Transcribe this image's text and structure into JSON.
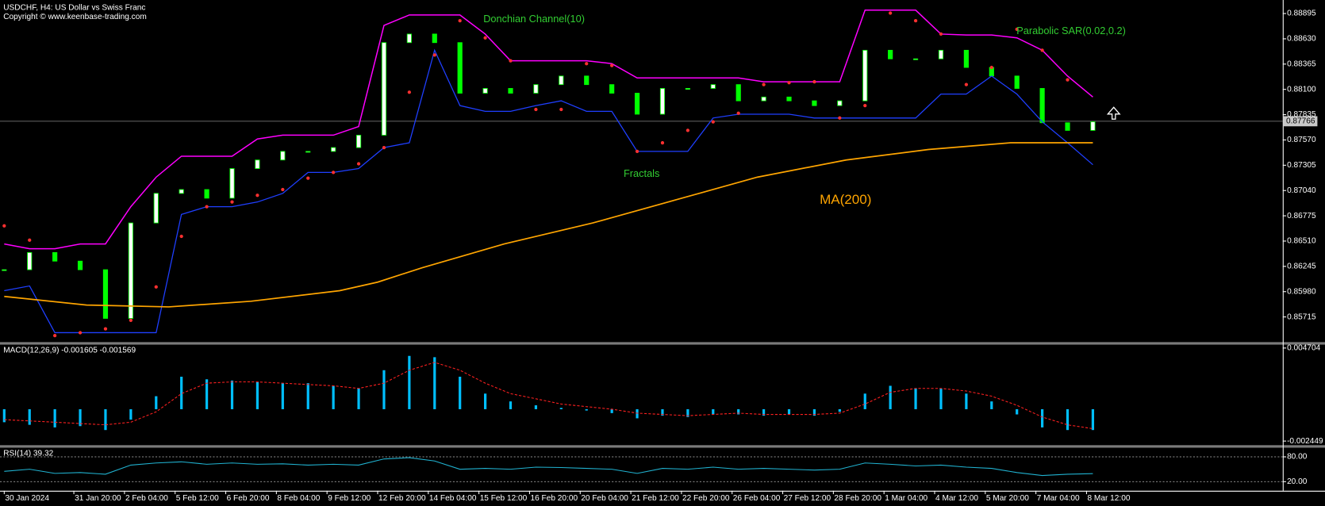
{
  "chart_data": [
    {
      "type": "price",
      "title": "USDCHF, H4:  US Dollar vs Swiss Franc",
      "subtitle": "Copyright © www.keenbase-trading.com",
      "annotation": "Fractals",
      "x": [
        0,
        4,
        8,
        12,
        16,
        20,
        24,
        28,
        32,
        36,
        40,
        44,
        48,
        52,
        56,
        60,
        64,
        68,
        72,
        76,
        80,
        84,
        88,
        92,
        96,
        100,
        104,
        108,
        112,
        116,
        120,
        124,
        128,
        132,
        136,
        140,
        144,
        148,
        152,
        156,
        160,
        164,
        168,
        172
      ],
      "xlim": [
        0,
        202
      ],
      "xticks": [
        {
          "value": 0,
          "label": "30 Jan 2024"
        },
        {
          "value": 11,
          "label": "31 Jan 20:00"
        },
        {
          "value": 19,
          "label": "2 Feb 04:00"
        },
        {
          "value": 27,
          "label": "5 Feb 12:00"
        },
        {
          "value": 35,
          "label": "6 Feb 20:00"
        },
        {
          "value": 43,
          "label": "8 Feb 04:00"
        },
        {
          "value": 51,
          "label": "9 Feb 12:00"
        },
        {
          "value": 59,
          "label": "12 Feb 20:00"
        },
        {
          "value": 67,
          "label": "14 Feb 04:00"
        },
        {
          "value": 75,
          "label": "15 Feb 12:00"
        },
        {
          "value": 83,
          "label": "16 Feb 20:00"
        },
        {
          "value": 91,
          "label": "20 Feb 04:00"
        },
        {
          "value": 99,
          "label": "21 Feb 12:00"
        },
        {
          "value": 107,
          "label": "22 Feb 20:00"
        },
        {
          "value": 115,
          "label": "26 Feb 04:00"
        },
        {
          "value": 123,
          "label": "27 Feb 12:00"
        },
        {
          "value": 131,
          "label": "28 Feb 20:00"
        },
        {
          "value": 139,
          "label": "1 Mar 04:00"
        },
        {
          "value": 147,
          "label": "4 Mar 12:00"
        },
        {
          "value": 155,
          "label": "5 Mar 20:00"
        },
        {
          "value": 163,
          "label": "7 Mar 04:00"
        },
        {
          "value": 171,
          "label": "8 Mar 12:00"
        }
      ],
      "ylim": [
        0.8546,
        0.8901
      ],
      "yticks": [
        0.88895,
        {
          "value": 0.8863,
          "label": "0.88630"
        },
        0.88365,
        {
          "value": 0.881,
          "label": "0.88100"
        },
        0.87835,
        {
          "value": 0.8757,
          "label": "0.87570"
        },
        0.87305,
        {
          "value": 0.8704,
          "label": "0.87040"
        },
        0.86775,
        {
          "value": 0.8651,
          "label": "0.86510"
        },
        0.86245,
        {
          "value": 0.8598,
          "label": "0.85980"
        },
        0.85715
      ],
      "last_price": 0.87766,
      "series": [
        {
          "style": "candles",
          "color": "#00ff00",
          "up_color": "#ffffff",
          "values": [
            0.8621,
            0.8639,
            0.863,
            0.8621,
            0.857,
            0.867,
            0.8701,
            0.8705,
            0.8696,
            0.8727,
            0.8736,
            0.8745,
            0.8745,
            0.8749,
            0.8762,
            0.8859,
            0.8868,
            0.8859,
            0.8806,
            0.8811,
            0.8806,
            0.8815,
            0.8824,
            0.8815,
            0.8806,
            0.8784,
            0.8811,
            0.8811,
            0.8815,
            0.8798,
            0.8802,
            0.8798,
            0.8793,
            0.8798,
            0.8851,
            0.8842,
            0.8842,
            0.8851,
            0.8833,
            0.8824,
            0.8811,
            0.8775,
            0.8767,
            0.8776
          ]
        },
        {
          "name": "Donchian Channel(10)",
          "style": "line",
          "color": "#ff00ff",
          "values": [
            0.8648,
            0.8643,
            0.8643,
            0.8648,
            0.8648,
            0.8687,
            0.8718,
            0.874,
            0.874,
            0.874,
            0.8758,
            0.8762,
            0.8762,
            0.8762,
            0.8771,
            0.8877,
            0.8888,
            0.8888,
            0.8888,
            0.8868,
            0.884,
            0.884,
            0.884,
            0.884,
            0.8837,
            0.8822,
            0.8822,
            0.8822,
            0.8822,
            0.8822,
            0.8818,
            0.8818,
            0.8818,
            0.8818,
            0.8893,
            0.8893,
            0.8893,
            0.8868,
            0.8867,
            0.8867,
            0.8864,
            0.8851,
            0.8824,
            0.8802
          ]
        },
        {
          "style": "line",
          "color": "#1f3fff",
          "values": [
            0.8599,
            0.8604,
            0.8555,
            0.8555,
            0.8555,
            0.8555,
            0.8555,
            0.8679,
            0.8687,
            0.8687,
            0.8692,
            0.8701,
            0.8723,
            0.8723,
            0.8727,
            0.8749,
            0.8754,
            0.8851,
            0.8793,
            0.8787,
            0.8787,
            0.8793,
            0.8798,
            0.8787,
            0.8787,
            0.8745,
            0.8745,
            0.8745,
            0.878,
            0.8784,
            0.8784,
            0.8784,
            0.878,
            0.878,
            0.878,
            0.878,
            0.878,
            0.8805,
            0.8805,
            0.8824,
            0.8805,
            0.8776,
            0.8754,
            0.8731
          ]
        },
        {
          "name": "MA(200)",
          "style": "line",
          "color": "#ffa500",
          "x": [
            0,
            13,
            26,
            39,
            53,
            59,
            66,
            79,
            93,
            106,
            119,
            133,
            146,
            159,
            172
          ],
          "values": [
            0.8593,
            0.8584,
            0.8582,
            0.8588,
            0.8599,
            0.8608,
            0.8623,
            0.8648,
            0.867,
            0.8694,
            0.8718,
            0.8736,
            0.8747,
            0.8754,
            0.8754
          ]
        },
        {
          "name": "Parabolic SAR(0.02,0.2)",
          "style": "dots",
          "color": "#ff3030",
          "values": [
            0.8667,
            0.8652,
            0.8552,
            0.8555,
            0.8559,
            0.8568,
            0.8603,
            0.8656,
            0.8687,
            0.8692,
            0.8699,
            0.8705,
            0.8717,
            0.8723,
            0.8732,
            0.8749,
            0.8807,
            0.8846,
            0.8882,
            0.8864,
            0.884,
            0.8789,
            0.8789,
            0.8837,
            0.8835,
            0.8745,
            0.8754,
            0.8767,
            0.8776,
            0.8785,
            0.8815,
            0.8817,
            0.8818,
            0.878,
            0.8793,
            0.889,
            0.8882,
            0.8868,
            0.8815,
            0.8833,
            0.8873,
            0.8851,
            0.882,
            null
          ]
        }
      ]
    },
    {
      "type": "macd",
      "title": "MACD(12,26,9) -0.001605 -0.001569",
      "ylim": [
        -0.0027,
        0.0049
      ],
      "yticks": [
        0.004704,
        -0.002449
      ],
      "series": [
        {
          "style": "histogram",
          "color": "#00bfff",
          "values": [
            -0.001,
            -0.0012,
            -0.0014,
            -0.0013,
            -0.0016,
            -0.0008,
            0.001,
            0.0025,
            0.0023,
            0.0022,
            0.0021,
            0.002,
            0.002,
            0.0018,
            0.0016,
            0.003,
            0.0041,
            0.004,
            0.0025,
            0.0012,
            0.0006,
            0.0003,
            0.0001,
            -0.0001,
            -0.0003,
            -0.0007,
            -0.0005,
            -0.0006,
            -0.0004,
            -0.0004,
            -0.0005,
            -0.0004,
            -0.0005,
            -0.0002,
            0.0012,
            0.0018,
            0.0016,
            0.0016,
            0.0012,
            0.0006,
            -0.0004,
            -0.0014,
            -0.0016,
            -0.0016
          ]
        },
        {
          "style": "dashed",
          "color": "#ff2020",
          "values": [
            -0.0008,
            -0.0009,
            -0.001,
            -0.0011,
            -0.0012,
            -0.001,
            -0.0002,
            0.0012,
            0.002,
            0.0021,
            0.0021,
            0.002,
            0.0019,
            0.0018,
            0.0016,
            0.002,
            0.003,
            0.0036,
            0.003,
            0.002,
            0.0012,
            0.0008,
            0.0004,
            0.0002,
            0,
            -0.0003,
            -0.0004,
            -0.0005,
            -0.0004,
            -0.0003,
            -0.0004,
            -0.0004,
            -0.0004,
            -0.0003,
            0.0004,
            0.0013,
            0.0016,
            0.0016,
            0.0014,
            0.001,
            0.0003,
            -0.0006,
            -0.0012,
            -0.0015
          ]
        }
      ]
    },
    {
      "type": "rsi",
      "title": "RSI(14) 39.32",
      "ylim": [
        0,
        100
      ],
      "yticks": [
        {
          "value": 80,
          "label": "80.00"
        },
        {
          "value": 20,
          "label": "20.00"
        }
      ],
      "series": [
        {
          "style": "line",
          "color": "#20b2d0",
          "values": [
            45,
            50,
            40,
            42,
            38,
            60,
            65,
            68,
            62,
            65,
            62,
            63,
            60,
            62,
            60,
            75,
            78,
            70,
            50,
            52,
            50,
            55,
            54,
            52,
            50,
            40,
            52,
            50,
            55,
            50,
            52,
            50,
            48,
            50,
            65,
            62,
            58,
            60,
            55,
            52,
            42,
            35,
            38,
            39.32
          ]
        }
      ]
    }
  ]
}
